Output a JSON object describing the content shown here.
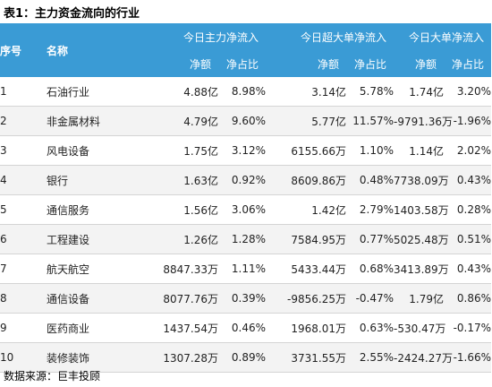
{
  "title": "表1：主力资金流向的行业",
  "header": {
    "index": "序号",
    "name": "名称",
    "groups": [
      "今日主力净流入",
      "今日超大单净流入",
      "今日大单净流入"
    ],
    "net": "净额",
    "ratio": "净占比"
  },
  "rows": [
    {
      "idx": "1",
      "name": "石油行业",
      "main_net": "4.88亿",
      "main_ratio": "8.98%",
      "xl_net": "3.14亿",
      "xl_ratio": "5.78%",
      "l_net": "1.74亿",
      "l_ratio": "3.20%"
    },
    {
      "idx": "2",
      "name": "非金属材料",
      "main_net": "4.79亿",
      "main_ratio": "9.60%",
      "xl_net": "5.77亿",
      "xl_ratio": "11.57%",
      "l_net": "-9791.36万",
      "l_ratio": "-1.96%"
    },
    {
      "idx": "3",
      "name": "风电设备",
      "main_net": "1.75亿",
      "main_ratio": "3.12%",
      "xl_net": "6155.66万",
      "xl_ratio": "1.10%",
      "l_net": "1.14亿",
      "l_ratio": "2.02%"
    },
    {
      "idx": "4",
      "name": "银行",
      "main_net": "1.63亿",
      "main_ratio": "0.92%",
      "xl_net": "8609.86万",
      "xl_ratio": "0.48%",
      "l_net": "7738.09万",
      "l_ratio": "0.43%"
    },
    {
      "idx": "5",
      "name": "通信服务",
      "main_net": "1.56亿",
      "main_ratio": "3.06%",
      "xl_net": "1.42亿",
      "xl_ratio": "2.79%",
      "l_net": "1403.58万",
      "l_ratio": "0.28%"
    },
    {
      "idx": "6",
      "name": "工程建设",
      "main_net": "1.26亿",
      "main_ratio": "1.28%",
      "xl_net": "7584.95万",
      "xl_ratio": "0.77%",
      "l_net": "5025.48万",
      "l_ratio": "0.51%"
    },
    {
      "idx": "7",
      "name": "航天航空",
      "main_net": "8847.33万",
      "main_ratio": "1.11%",
      "xl_net": "5433.44万",
      "xl_ratio": "0.68%",
      "l_net": "3413.89万",
      "l_ratio": "0.43%"
    },
    {
      "idx": "8",
      "name": "通信设备",
      "main_net": "8077.76万",
      "main_ratio": "0.39%",
      "xl_net": "-9856.25万",
      "xl_ratio": "-0.47%",
      "l_net": "1.79亿",
      "l_ratio": "0.86%"
    },
    {
      "idx": "9",
      "name": "医药商业",
      "main_net": "1437.54万",
      "main_ratio": "0.46%",
      "xl_net": "1968.01万",
      "xl_ratio": "0.63%",
      "l_net": "-530.47万",
      "l_ratio": "-0.17%"
    },
    {
      "idx": "10",
      "name": "装修装饰",
      "main_net": "1307.28万",
      "main_ratio": "0.89%",
      "xl_net": "3731.55万",
      "xl_ratio": "2.55%",
      "l_net": "-2424.27万",
      "l_ratio": "-1.66%"
    }
  ],
  "source": "数据来源：巨丰投顾"
}
